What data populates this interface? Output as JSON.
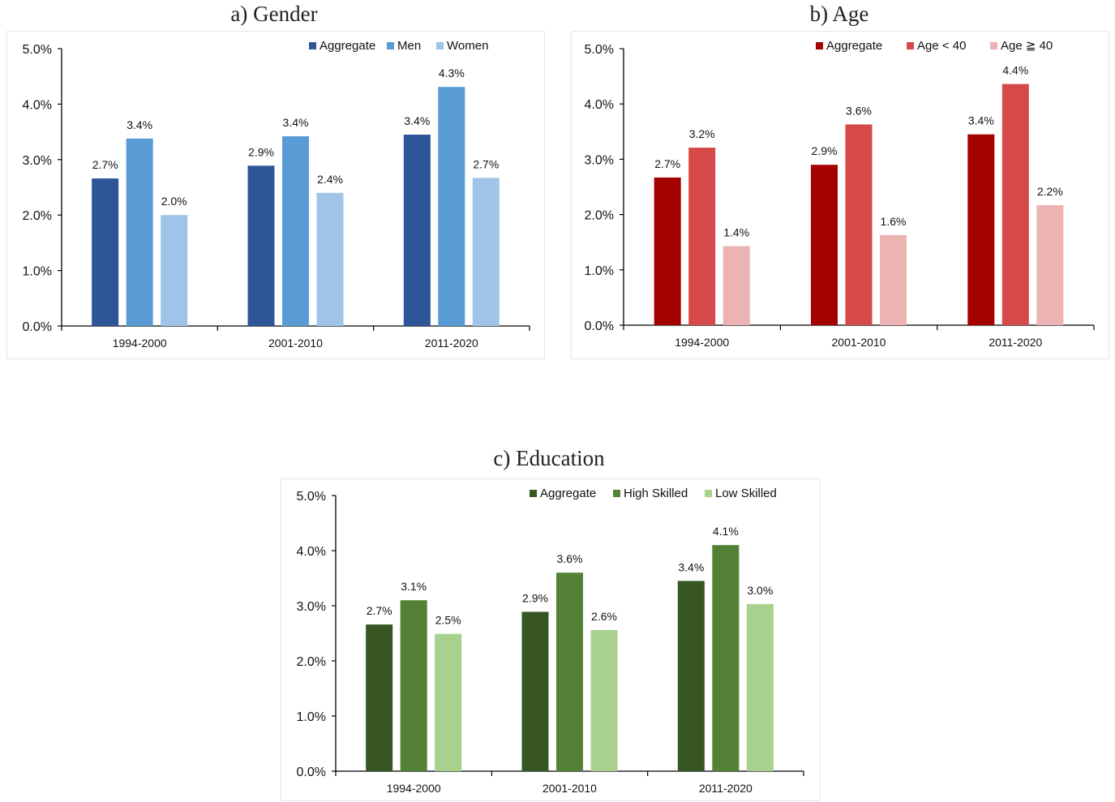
{
  "panels": [
    {
      "title": "a) Gender"
    },
    {
      "title": "b) Age"
    },
    {
      "title": "c) Education"
    }
  ],
  "chart_data": [
    {
      "type": "bar",
      "title": "a) Gender",
      "categories": [
        "1994-2000",
        "2001-2010",
        "2011-2020"
      ],
      "series": [
        {
          "name": "Aggregate",
          "values": [
            2.7,
            2.9,
            3.4
          ],
          "plotted": [
            2.66,
            2.89,
            3.45
          ],
          "color": "#2e5597"
        },
        {
          "name": "Men",
          "values": [
            3.4,
            3.4,
            4.3
          ],
          "plotted": [
            3.38,
            3.42,
            4.31
          ],
          "color": "#5b9bd5"
        },
        {
          "name": "Women",
          "values": [
            2.0,
            2.4,
            2.7
          ],
          "plotted": [
            2.0,
            2.4,
            2.67
          ],
          "color": "#a0c4e8"
        }
      ],
      "labels": [
        [
          "2.7%",
          "2.9%",
          "3.4%"
        ],
        [
          "3.4%",
          "3.4%",
          "4.3%"
        ],
        [
          "2.0%",
          "2.4%",
          "2.7%"
        ]
      ],
      "ylim": [
        0,
        5
      ],
      "yticks": [
        "0.0%",
        "1.0%",
        "2.0%",
        "3.0%",
        "4.0%",
        "5.0%"
      ],
      "xlabel": "",
      "ylabel": "",
      "legend": "top-right",
      "grid": false
    },
    {
      "type": "bar",
      "title": "b) Age",
      "categories": [
        "1994-2000",
        "2001-2010",
        "2011-2020"
      ],
      "series": [
        {
          "name": "Aggregate",
          "values": [
            2.7,
            2.9,
            3.4
          ],
          "plotted": [
            2.67,
            2.9,
            3.45
          ],
          "color": "#a50000"
        },
        {
          "name": "Age < 40",
          "values": [
            3.2,
            3.6,
            4.4
          ],
          "plotted": [
            3.21,
            3.63,
            4.36
          ],
          "color": "#d64949"
        },
        {
          "name": "Age ≧ 40",
          "values": [
            1.4,
            1.6,
            2.2
          ],
          "plotted": [
            1.43,
            1.63,
            2.17
          ],
          "color": "#ecb3b3"
        }
      ],
      "labels": [
        [
          "2.7%",
          "2.9%",
          "3.4%"
        ],
        [
          "3.2%",
          "3.6%",
          "4.4%"
        ],
        [
          "1.4%",
          "1.6%",
          "2.2%"
        ]
      ],
      "ylim": [
        0,
        5
      ],
      "yticks": [
        "0.0%",
        "1.0%",
        "2.0%",
        "3.0%",
        "4.0%",
        "5.0%"
      ],
      "xlabel": "",
      "ylabel": "",
      "legend": "top-right",
      "grid": false
    },
    {
      "type": "bar",
      "title": "c) Education",
      "categories": [
        "1994-2000",
        "2001-2010",
        "2011-2020"
      ],
      "series": [
        {
          "name": "Aggregate",
          "values": [
            2.7,
            2.9,
            3.4
          ],
          "plotted": [
            2.66,
            2.89,
            3.45
          ],
          "color": "#375623"
        },
        {
          "name": "High Skilled",
          "values": [
            3.1,
            3.6,
            4.1
          ],
          "plotted": [
            3.1,
            3.6,
            4.1
          ],
          "color": "#538135"
        },
        {
          "name": "Low Skilled",
          "values": [
            2.5,
            2.6,
            3.0
          ],
          "plotted": [
            2.49,
            2.56,
            3.03
          ],
          "color": "#a9d18e"
        }
      ],
      "labels": [
        [
          "2.7%",
          "2.9%",
          "3.4%"
        ],
        [
          "3.1%",
          "3.6%",
          "4.1%"
        ],
        [
          "2.5%",
          "2.6%",
          "3.0%"
        ]
      ],
      "ylim": [
        0,
        5
      ],
      "yticks": [
        "0.0%",
        "1.0%",
        "2.0%",
        "3.0%",
        "4.0%",
        "5.0%"
      ],
      "xlabel": "",
      "ylabel": "",
      "legend": "top-right",
      "grid": false
    }
  ]
}
